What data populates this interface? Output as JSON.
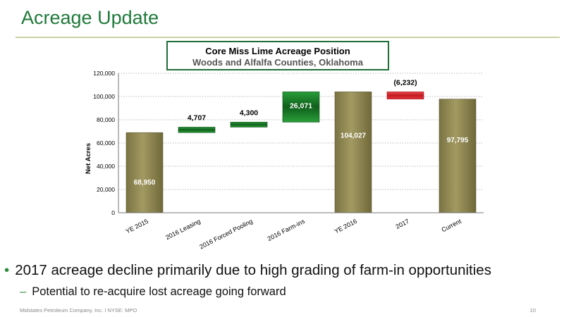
{
  "slide": {
    "title": "Acreage Update",
    "bullet_main": "2017 acreage decline primarily due to high grading of farm-in opportunities",
    "bullet_sub": "Potential to re-acquire lost acreage going forward",
    "bullet_marker": "•",
    "sub_marker": "–",
    "footer": "Midstates Petroleum Company, Inc. I NYSE: MPO",
    "page_number": "10"
  },
  "chart_data": {
    "type": "bar",
    "variant": "waterfall",
    "title": "Core Miss Lime Acreage Position",
    "subtitle": "Woods and Alfalfa Counties, Oklahoma",
    "ylabel": "Net Acres",
    "ylim": [
      0,
      120000
    ],
    "yticks": [
      0,
      20000,
      40000,
      60000,
      80000,
      100000,
      120000
    ],
    "ytick_labels": [
      "0",
      "20,000",
      "40,000",
      "60,000",
      "80,000",
      "100,000",
      "120,000"
    ],
    "grid": true,
    "categories": [
      "YE 2015",
      "2016 Leasing",
      "2016 Forced Pooling",
      "2016 Farm-ins",
      "YE 2016",
      "2017",
      "Current"
    ],
    "bars": [
      {
        "kind": "total",
        "start": 0,
        "end": 68950,
        "label": "68,950"
      },
      {
        "kind": "increase",
        "start": 68950,
        "end": 73657,
        "label": "4,707"
      },
      {
        "kind": "increase",
        "start": 73657,
        "end": 77957,
        "label": "4,300"
      },
      {
        "kind": "increase",
        "start": 77957,
        "end": 104027,
        "label": "26,071"
      },
      {
        "kind": "total",
        "start": 0,
        "end": 104027,
        "label": "104,027"
      },
      {
        "kind": "decrease",
        "start": 104027,
        "end": 97795,
        "label": "(6,232)"
      },
      {
        "kind": "total",
        "start": 0,
        "end": 97795,
        "label": "97,795"
      }
    ],
    "colors": {
      "total": "#8c8450",
      "increase": "#1e8a2e",
      "decrease": "#d9242a",
      "grid": "#bdbdbd"
    }
  }
}
